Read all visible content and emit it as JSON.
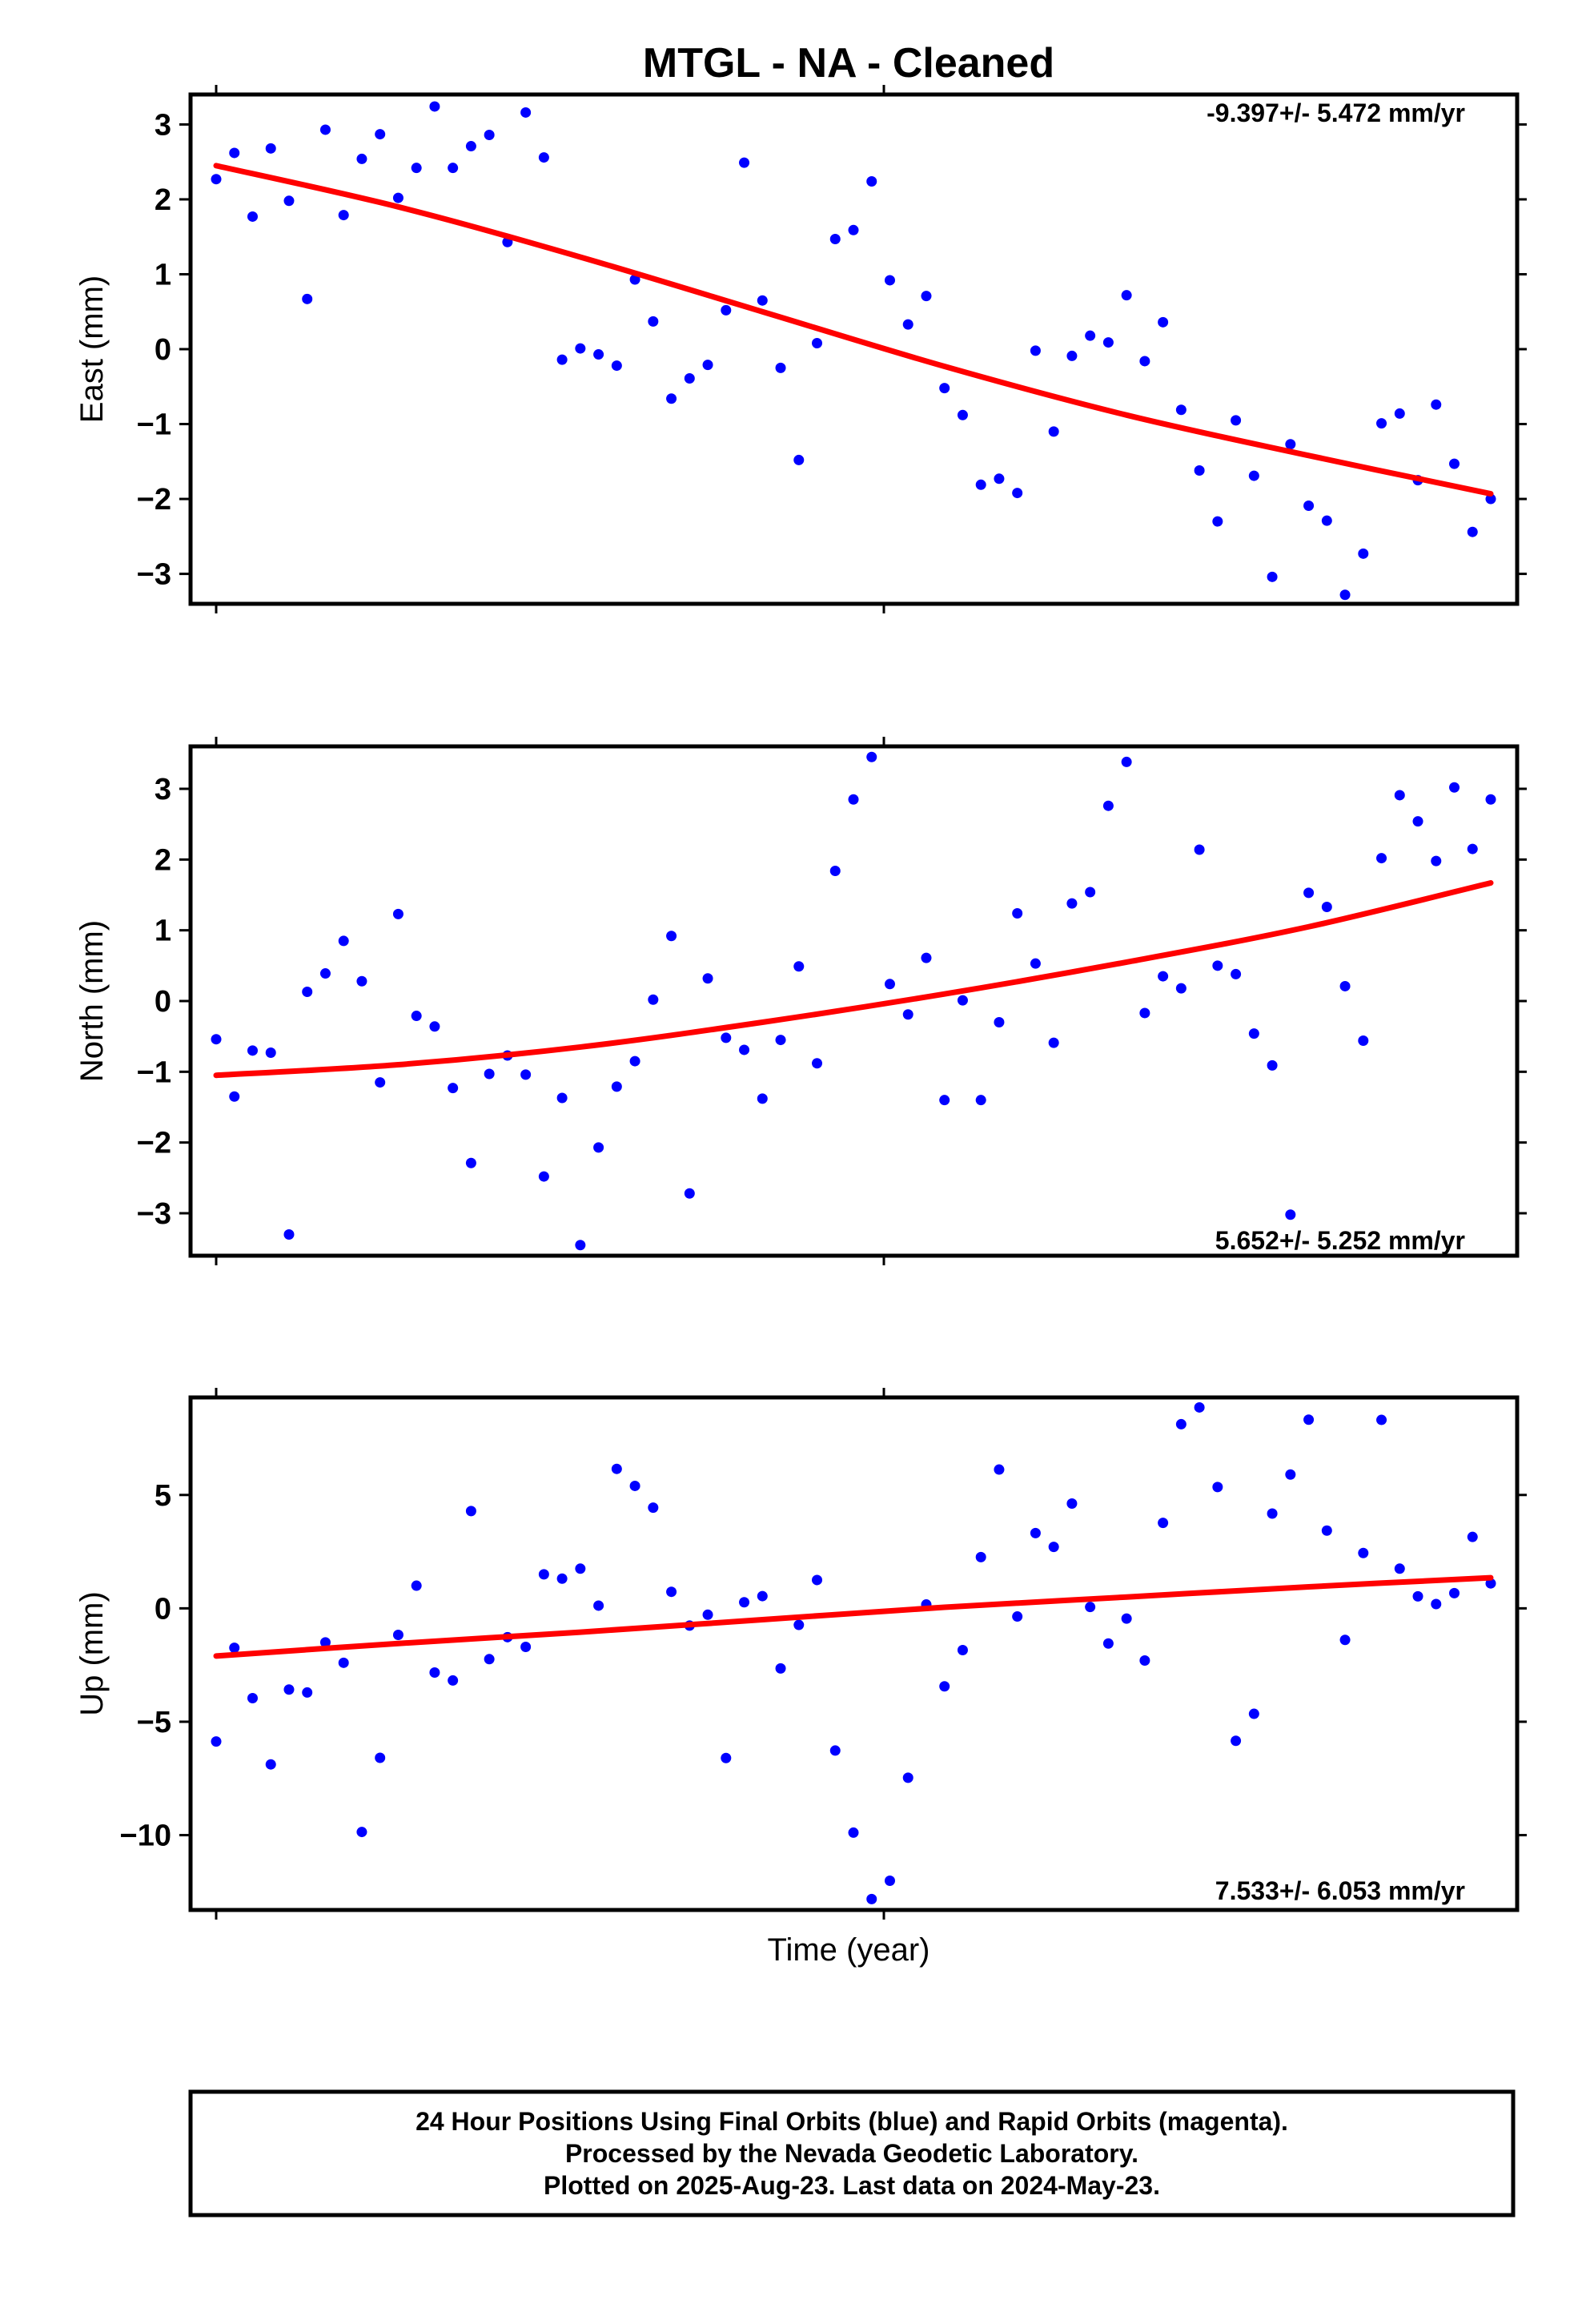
{
  "title": "MTGL  - NA - Cleaned",
  "xlabel": "Time (year)",
  "footer": {
    "line1": "24 Hour Positions Using Final Orbits (blue) and Rapid Orbits (magenta).",
    "line2": "Processed by the Nevada Geodetic Laboratory.",
    "line3": "Plotted on 2025-Aug-23. Last data on 2024-May-23."
  },
  "colors": {
    "points": "#0000ff",
    "fit": "#ff0000",
    "frame": "#000000"
  },
  "chart_data": [
    {
      "type": "scatter",
      "ylabel": "East (mm)",
      "rate_label": "-9.397+/- 5.472 mm/yr",
      "ylim": [
        -3.4,
        3.4
      ],
      "yticks": [
        -3,
        -2,
        -1,
        0,
        1,
        2,
        3
      ],
      "ytick_labels": [
        "−3",
        "−2",
        "−1",
        "0",
        "1",
        "2",
        "3"
      ],
      "points_y": [
        2.27,
        2.62,
        1.77,
        2.68,
        1.98,
        0.67,
        2.93,
        1.79,
        2.54,
        2.87,
        2.02,
        2.42,
        3.24,
        2.42,
        2.71,
        2.86,
        1.43,
        3.16,
        2.56,
        -0.14,
        0.01,
        -0.07,
        -0.22,
        0.93,
        0.37,
        -0.66,
        -0.39,
        -0.21,
        0.52,
        2.49,
        0.65,
        -0.25,
        -1.48,
        0.08,
        1.47,
        1.59,
        2.24,
        0.92,
        0.33,
        0.71,
        -0.52,
        -0.88,
        -1.81,
        -1.73,
        -1.92,
        -0.02,
        -1.1,
        -0.09,
        0.18,
        0.09,
        0.72,
        -0.16,
        0.36,
        -0.81,
        -1.62,
        -2.3,
        -0.95,
        -1.69,
        -3.04,
        -1.27,
        -2.09,
        -2.29,
        -3.28,
        -2.73,
        -0.99,
        -0.86,
        -1.75,
        -0.74,
        -1.53,
        -2.44,
        -2.0
      ],
      "fit_y": [
        2.45,
        1.9,
        1.23,
        0.5,
        -0.23,
        -0.88,
        -1.42,
        -1.93
      ]
    },
    {
      "type": "scatter",
      "ylabel": "North (mm)",
      "rate_label": "5.652+/- 5.252 mm/yr",
      "ylim": [
        -3.6,
        3.6
      ],
      "yticks": [
        -3,
        -2,
        -1,
        0,
        1,
        2,
        3
      ],
      "ytick_labels": [
        "−3",
        "−2",
        "−1",
        "0",
        "1",
        "2",
        "3"
      ],
      "points_y": [
        -0.54,
        -1.35,
        -0.7,
        -0.73,
        -3.3,
        0.13,
        0.39,
        0.85,
        0.28,
        -1.15,
        1.23,
        -0.21,
        -0.36,
        -1.23,
        -2.29,
        -1.03,
        -0.77,
        -1.04,
        -2.48,
        -1.37,
        -3.45,
        -2.07,
        -1.21,
        -0.85,
        0.02,
        0.92,
        -2.72,
        0.32,
        -0.52,
        -0.69,
        -1.38,
        -0.55,
        0.49,
        -0.88,
        1.84,
        2.85,
        3.45,
        0.24,
        -0.19,
        0.61,
        -1.4,
        0.01,
        -1.4,
        -0.3,
        1.24,
        0.53,
        -0.59,
        1.38,
        1.54,
        2.76,
        3.38,
        -0.17,
        0.35,
        0.18,
        2.14,
        0.5,
        0.38,
        -0.46,
        -0.91,
        -3.02,
        1.53,
        1.33,
        0.21,
        -0.56,
        2.02,
        2.91,
        2.54,
        1.98,
        3.02,
        2.15,
        2.85
      ],
      "fit_y": [
        -1.05,
        -0.9,
        -0.65,
        -0.3,
        0.1,
        0.55,
        1.05,
        1.67
      ]
    },
    {
      "type": "scatter",
      "ylabel": "Up (mm)",
      "rate_label": "7.533+/- 6.053 mm/yr",
      "ylim": [
        -13.3,
        9.3
      ],
      "yticks": [
        -10,
        -5,
        0,
        5
      ],
      "ytick_labels": [
        "−10",
        "−5",
        "0",
        "5"
      ],
      "points_y": [
        -5.87,
        -1.74,
        -3.96,
        -6.88,
        -3.58,
        -3.71,
        -1.5,
        -2.4,
        -9.86,
        -6.59,
        -1.17,
        1.0,
        -2.83,
        -3.18,
        4.29,
        -2.24,
        -1.27,
        -1.7,
        1.5,
        1.31,
        1.75,
        0.12,
        6.15,
        5.4,
        4.44,
        0.73,
        -0.76,
        -0.28,
        -6.6,
        0.27,
        0.54,
        -2.65,
        -0.73,
        1.25,
        -6.27,
        -9.89,
        -12.82,
        -12.01,
        -7.47,
        0.17,
        -3.44,
        -1.84,
        2.26,
        6.12,
        -0.36,
        3.32,
        2.71,
        4.62,
        0.06,
        -1.55,
        -0.45,
        -2.3,
        3.77,
        8.12,
        8.86,
        5.35,
        -5.84,
        -4.65,
        4.18,
        5.9,
        8.32,
        3.43,
        -1.39,
        2.44,
        8.31,
        1.75,
        0.53,
        0.19,
        0.67,
        3.15,
        1.1
      ],
      "fit_y": [
        -2.1,
        -1.55,
        -1.05,
        -0.5,
        0.05,
        0.5,
        0.95,
        1.35
      ]
    }
  ]
}
